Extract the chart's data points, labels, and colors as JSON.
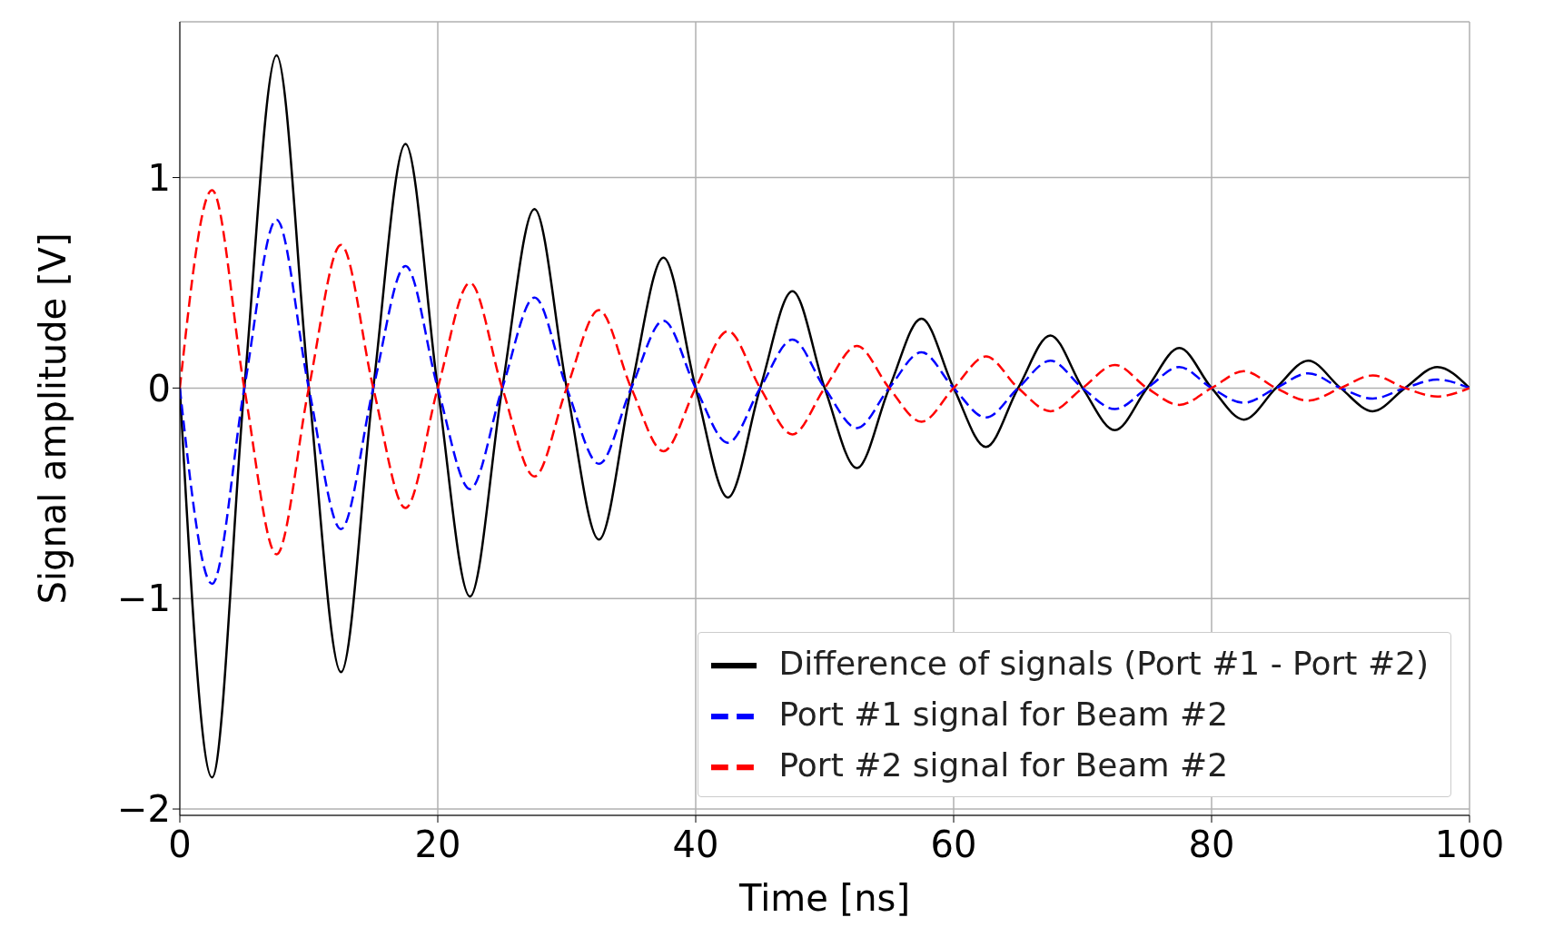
{
  "chart_data": {
    "type": "line",
    "xlabel": "Time [ns]",
    "ylabel": "Signal amplitude [V]",
    "x": [
      0,
      2.5,
      5,
      7.5,
      10,
      12.5,
      15,
      17.5,
      20,
      22.5,
      25,
      27.5,
      30,
      32.5,
      35,
      37.5,
      40,
      42.5,
      45,
      47.5,
      50,
      52.5,
      55,
      57.5,
      60,
      62.5,
      65,
      67.5,
      70,
      72.5,
      75,
      77.5,
      80,
      82.5,
      85,
      87.5,
      90,
      92.5,
      95,
      97.5,
      100
    ],
    "series": [
      {
        "name": "Difference of signals (Port #1 - Port #2)",
        "color": "#000000",
        "line_style": "solid",
        "values": [
          0,
          -1.85,
          0,
          1.58,
          0,
          -1.35,
          0,
          1.16,
          0,
          -0.99,
          0,
          0.85,
          0,
          -0.72,
          0,
          0.62,
          0,
          -0.52,
          0,
          0.46,
          0,
          -0.38,
          0,
          0.33,
          0,
          -0.28,
          0,
          0.25,
          0,
          -0.2,
          0,
          0.19,
          0,
          -0.15,
          0,
          0.13,
          0,
          -0.11,
          0,
          0.1,
          0
        ]
      },
      {
        "name": "Port #1 signal for Beam #2",
        "color": "#0000ff",
        "line_style": "dashed",
        "values": [
          0,
          -0.93,
          0,
          0.8,
          0,
          -0.67,
          0,
          0.58,
          0,
          -0.48,
          0,
          0.43,
          0,
          -0.36,
          0,
          0.32,
          0,
          -0.26,
          0,
          0.23,
          0,
          -0.19,
          0,
          0.17,
          0,
          -0.14,
          0,
          0.13,
          0,
          -0.1,
          0,
          0.1,
          0,
          -0.07,
          0,
          0.07,
          0,
          -0.05,
          0,
          0.04,
          0
        ]
      },
      {
        "name": "Port #2 signal for Beam #2",
        "color": "#ff0000",
        "line_style": "dashed",
        "values": [
          0,
          0.94,
          0,
          -0.79,
          0,
          0.68,
          0,
          -0.57,
          0,
          0.5,
          0,
          -0.42,
          0,
          0.37,
          0,
          -0.3,
          0,
          0.27,
          0,
          -0.22,
          0,
          0.2,
          0,
          -0.16,
          0,
          0.15,
          0,
          -0.11,
          0,
          0.11,
          0,
          -0.08,
          0,
          0.08,
          0,
          -0.06,
          0,
          0.06,
          0,
          -0.04,
          0
        ]
      }
    ],
    "xlim": [
      0,
      100
    ],
    "xticks": [
      0,
      20,
      40,
      60,
      80,
      100
    ],
    "ylim": [
      -2.03,
      1.74
    ],
    "yticks": [
      {
        "value": -2,
        "label": "−2"
      },
      {
        "value": -1,
        "label": "−1"
      },
      0,
      1
    ],
    "grid": true,
    "legend": "bottom right"
  }
}
